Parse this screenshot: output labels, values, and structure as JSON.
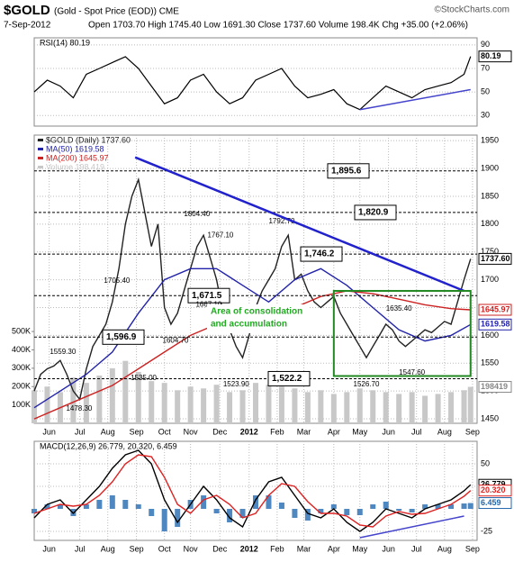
{
  "header": {
    "symbol": "$GOLD",
    "name": "(Gold - Spot Price (EOD)) CME",
    "source": "©StockCharts.com",
    "date": "7-Sep-2012",
    "quote": "Open 1703.70 High 1745.40 Low 1691.30 Close 1737.60 Volume 198.4K Chg +35.00 (+2.06%)"
  },
  "chart_data": [
    {
      "type": "line",
      "title": "RSI(14) 80.19",
      "xlim": [
        0,
        68
      ],
      "ylim": [
        21,
        96
      ],
      "yticks": [
        30,
        50,
        70,
        90
      ],
      "grid": true,
      "series": [
        {
          "name": "RSI(14)",
          "color": "#000000",
          "x": [
            0,
            2,
            4,
            6,
            8,
            10,
            12,
            14,
            16,
            18,
            20,
            22,
            24,
            26,
            28,
            30,
            32,
            34,
            36,
            38,
            40,
            42,
            44,
            46,
            48,
            50,
            52,
            54,
            56,
            58,
            60,
            62,
            64,
            66,
            67
          ],
          "values": [
            50,
            60,
            55,
            45,
            65,
            70,
            75,
            80,
            70,
            55,
            40,
            45,
            60,
            65,
            50,
            40,
            45,
            60,
            65,
            70,
            55,
            45,
            48,
            52,
            40,
            35,
            45,
            55,
            50,
            45,
            52,
            55,
            58,
            65,
            80.19
          ]
        }
      ],
      "trendlines": [
        {
          "x": [
            50,
            67
          ],
          "values": [
            35,
            52
          ],
          "color": "#4444cc"
        }
      ],
      "tags": [
        {
          "value": 80.19,
          "label": "80.19",
          "color": "#000000"
        }
      ]
    },
    {
      "type": "line",
      "xlim": [
        0,
        68
      ],
      "ylim": [
        1442,
        1960
      ],
      "yticks": [
        1450,
        1500,
        1550,
        1600,
        1650,
        1700,
        1750,
        1800,
        1850,
        1900,
        1950
      ],
      "grid": true,
      "xticks": [
        {
          "value": 2.3,
          "label": "Jun"
        },
        {
          "value": 7,
          "label": "Jul"
        },
        {
          "value": 11.3,
          "label": "Aug"
        },
        {
          "value": 15.7,
          "label": "Sep"
        },
        {
          "value": 20,
          "label": "Oct"
        },
        {
          "value": 24,
          "label": "Nov"
        },
        {
          "value": 28.5,
          "label": "Dec"
        },
        {
          "value": 33,
          "label": "2012"
        },
        {
          "value": 37.3,
          "label": "Feb"
        },
        {
          "value": 41.4,
          "label": "Mar"
        },
        {
          "value": 46,
          "label": "Apr"
        },
        {
          "value": 50,
          "label": "May"
        },
        {
          "value": 54.4,
          "label": "Jun"
        },
        {
          "value": 58.7,
          "label": "Jul"
        },
        {
          "value": 63,
          "label": "Aug"
        },
        {
          "value": 67.3,
          "label": "Sep"
        }
      ],
      "y2lim": [
        0,
        1570000
      ],
      "y2ticks": [
        {
          "value": 100000,
          "label": "100K"
        },
        {
          "value": 200000,
          "label": "200K"
        },
        {
          "value": 300000,
          "label": "300K"
        },
        {
          "value": 400000,
          "label": "400K"
        },
        {
          "value": 500000,
          "label": "500K"
        }
      ],
      "series": [
        {
          "name": "Volume 198,419",
          "type": "bar",
          "axis": "y2",
          "color": "#c8c8c8",
          "x": [
            0,
            2,
            4,
            6,
            8,
            10,
            12,
            14,
            16,
            18,
            20,
            22,
            24,
            26,
            28,
            30,
            32,
            34,
            36,
            38,
            40,
            42,
            44,
            46,
            48,
            50,
            52,
            54,
            56,
            58,
            60,
            62,
            64,
            66,
            67
          ],
          "values": [
            180000,
            200000,
            170000,
            250000,
            220000,
            260000,
            300000,
            340000,
            280000,
            230000,
            220000,
            180000,
            200000,
            190000,
            210000,
            170000,
            180000,
            220000,
            210000,
            200000,
            190000,
            170000,
            180000,
            160000,
            170000,
            190000,
            180000,
            170000,
            160000,
            170000,
            150000,
            160000,
            170000,
            180000,
            198419
          ]
        },
        {
          "name": "$GOLD (Daily) 1737.60",
          "color": "#222222",
          "x": [
            0,
            1,
            2,
            3,
            4,
            5,
            6,
            7,
            8,
            9,
            10,
            11,
            12,
            13,
            14,
            15,
            16,
            17,
            18,
            19,
            20,
            21,
            22,
            23,
            24,
            25,
            26,
            27,
            28,
            29,
            30,
            31,
            32,
            33,
            34,
            35,
            36,
            37,
            38,
            39,
            40,
            41,
            42,
            43,
            44,
            45,
            46,
            47,
            48,
            49,
            50,
            51,
            52,
            53,
            54,
            55,
            56,
            57,
            58,
            59,
            60,
            61,
            62,
            63,
            64,
            65,
            66,
            67
          ],
          "values": [
            1500,
            1530,
            1540,
            1545,
            1555,
            1530,
            1500,
            1485,
            1540,
            1580,
            1600,
            1620,
            1660,
            1720,
            1800,
            1850,
            1880,
            1820,
            1760,
            1800,
            1650,
            1620,
            1640,
            1680,
            1720,
            1760,
            1780,
            1740,
            1700,
            1640,
            1610,
            1580,
            1560,
            1600,
            1650,
            1680,
            1700,
            1720,
            1760,
            1780,
            1700,
            1710,
            1680,
            1660,
            1650,
            1660,
            1670,
            1640,
            1620,
            1600,
            1580,
            1560,
            1580,
            1600,
            1620,
            1610,
            1590,
            1580,
            1590,
            1600,
            1610,
            1605,
            1615,
            1625,
            1620,
            1660,
            1700,
            1737.6
          ]
        },
        {
          "name": "MA(50) 1619.58",
          "color": "#2222aa",
          "x": [
            0,
            4,
            8,
            12,
            16,
            20,
            24,
            28,
            32,
            36,
            40,
            44,
            48,
            52,
            56,
            60,
            64,
            67
          ],
          "values": [
            1470,
            1500,
            1530,
            1570,
            1640,
            1700,
            1720,
            1720,
            1690,
            1660,
            1700,
            1720,
            1690,
            1650,
            1610,
            1590,
            1600,
            1619.58
          ]
        },
        {
          "name": "MA(200) 1645.97",
          "color": "#cc2222",
          "x": [
            0,
            4,
            8,
            12,
            16,
            20,
            24,
            28,
            32,
            36,
            40,
            44,
            48,
            52,
            56,
            60,
            64,
            67
          ],
          "values": [
            1450,
            1470,
            1490,
            1510,
            1540,
            1570,
            1600,
            1620,
            1630,
            1640,
            1650,
            1670,
            1680,
            1675,
            1665,
            1655,
            1648,
            1645.97
          ]
        }
      ],
      "levels": [
        {
          "value": 1895.6,
          "label": "1,895.6"
        },
        {
          "value": 1820.9,
          "label": "1,820.9"
        },
        {
          "value": 1746.2,
          "label": "1,746.2"
        },
        {
          "value": 1671.5,
          "label": "1,671.5"
        },
        {
          "value": 1596.9,
          "label": "1,596.9"
        },
        {
          "value": 1522.2,
          "label": "1,522.2"
        }
      ],
      "point_labels": {
        "x": [
          4.4,
          6.9,
          12.7,
          16.8,
          21.7,
          26.8,
          25,
          28.6,
          31,
          38,
          56,
          51,
          58
        ],
        "values": [
          1570,
          1468,
          1698,
          1523,
          1590,
          1655,
          1818,
          1780,
          1512,
          1805,
          1648,
          1512,
          1533
        ],
        "value_labels": [
          "1559.30",
          "1478.30",
          "1705.40",
          "1535.00",
          "1604.70",
          "1667.10",
          "1804.40",
          "1767.10",
          "1523.90",
          "1792.70",
          "1635.40",
          "1526.70",
          "1547.60"
        ]
      },
      "trendlines": [
        {
          "x": [
            15.5,
            66
          ],
          "values": [
            1920,
            1680
          ],
          "color": "#2222cc"
        }
      ],
      "boxes": [
        {
          "x": [
            46,
            67
          ],
          "values": [
            1527,
            1680
          ],
          "color": "#228822"
        }
      ],
      "annotations": [
        "Area of consolidation",
        "and accumulation"
      ],
      "tags": [
        {
          "value": 1737.6,
          "label": "1737.60",
          "color": "#000000"
        },
        {
          "value": 1645.97,
          "label": "1645.97",
          "color": "#cc2222"
        },
        {
          "value": 1619.58,
          "label": "1619.58",
          "color": "#2222aa"
        },
        {
          "value": 198419,
          "label": "198419",
          "color": "#888888",
          "axis": "y2"
        }
      ]
    },
    {
      "type": "line",
      "title": "MACD(12,26,9) 26.779, 20.320, 6.459",
      "xlim": [
        0,
        68
      ],
      "ylim": [
        -35,
        75
      ],
      "yticks": [
        -25,
        25,
        50
      ],
      "grid": true,
      "xticks": [
        {
          "value": 2.3,
          "label": "Jun"
        },
        {
          "value": 7,
          "label": "Jul"
        },
        {
          "value": 11.3,
          "label": "Aug"
        },
        {
          "value": 15.7,
          "label": "Sep"
        },
        {
          "value": 20,
          "label": "Oct"
        },
        {
          "value": 24,
          "label": "Nov"
        },
        {
          "value": 28.5,
          "label": "Dec"
        },
        {
          "value": 33,
          "label": "2012"
        },
        {
          "value": 37.3,
          "label": "Feb"
        },
        {
          "value": 41.4,
          "label": "Mar"
        },
        {
          "value": 46,
          "label": "Apr"
        },
        {
          "value": 50,
          "label": "May"
        },
        {
          "value": 54.4,
          "label": "Jun"
        },
        {
          "value": 58.7,
          "label": "Jul"
        },
        {
          "value": 63,
          "label": "Aug"
        },
        {
          "value": 67.3,
          "label": "Sep"
        }
      ],
      "series": [
        {
          "name": "Histogram",
          "type": "bar",
          "color": "#4f88c0",
          "x": [
            0,
            2,
            4,
            6,
            8,
            10,
            12,
            14,
            16,
            18,
            20,
            22,
            24,
            26,
            28,
            30,
            32,
            34,
            36,
            38,
            40,
            42,
            44,
            46,
            48,
            50,
            52,
            54,
            56,
            58,
            60,
            62,
            64,
            66,
            67
          ],
          "values": [
            -5,
            5,
            5,
            -8,
            5,
            10,
            15,
            10,
            5,
            -8,
            -25,
            -20,
            10,
            15,
            -5,
            -15,
            -10,
            15,
            15,
            7,
            -10,
            -13,
            -5,
            5,
            -7,
            -7,
            5,
            8,
            -2,
            -4,
            5,
            5,
            5,
            6,
            6.459
          ]
        },
        {
          "name": "MACD",
          "color": "#000000",
          "x": [
            0,
            2,
            4,
            6,
            8,
            10,
            12,
            14,
            16,
            18,
            20,
            22,
            24,
            26,
            28,
            30,
            32,
            34,
            36,
            38,
            40,
            42,
            44,
            46,
            48,
            50,
            52,
            54,
            56,
            58,
            60,
            62,
            64,
            66,
            67
          ],
          "values": [
            -10,
            5,
            10,
            -5,
            10,
            25,
            45,
            60,
            65,
            50,
            10,
            -15,
            5,
            25,
            10,
            -10,
            -20,
            10,
            30,
            35,
            15,
            -5,
            -10,
            0,
            -15,
            -25,
            -15,
            0,
            -5,
            -10,
            0,
            5,
            10,
            20,
            26.779
          ]
        },
        {
          "name": "Signal",
          "color": "#dd2222",
          "x": [
            0,
            2,
            4,
            6,
            8,
            10,
            12,
            14,
            16,
            18,
            20,
            22,
            24,
            26,
            28,
            30,
            32,
            34,
            36,
            38,
            40,
            42,
            44,
            46,
            48,
            50,
            52,
            54,
            56,
            58,
            60,
            62,
            64,
            66,
            67
          ],
          "values": [
            -5,
            0,
            5,
            3,
            5,
            15,
            30,
            50,
            60,
            58,
            35,
            5,
            -5,
            10,
            15,
            5,
            -10,
            -5,
            15,
            28,
            25,
            8,
            -5,
            -5,
            -8,
            -18,
            -20,
            -8,
            -3,
            -6,
            -5,
            0,
            5,
            14,
            20.32
          ]
        }
      ],
      "trendlines": [
        {
          "x": [
            50,
            66
          ],
          "values": [
            -32,
            -8
          ],
          "color": "#4444cc"
        }
      ],
      "tags": [
        {
          "value": 26.779,
          "label": "26.779",
          "color": "#000000"
        },
        {
          "value": 20.32,
          "label": "20.320",
          "color": "#dd2222"
        },
        {
          "value": 6.459,
          "label": "6.459",
          "color": "#2266aa"
        }
      ]
    }
  ]
}
